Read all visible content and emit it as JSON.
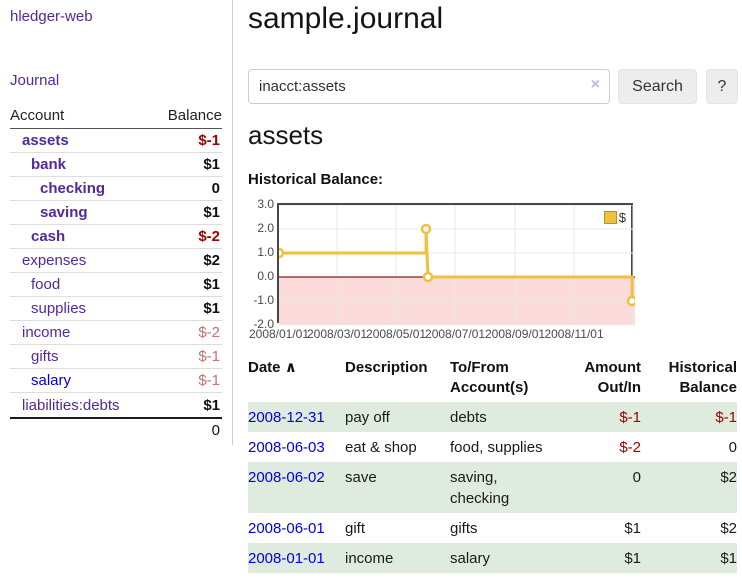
{
  "app": {
    "brand": "hledger-web"
  },
  "colors": {
    "link_purple": "#54289a",
    "link_blue": "#0000dd",
    "negative": "#a00000",
    "negative_muted": "#c47070",
    "row_green": "#deebde",
    "series_yellow": "#edc240"
  },
  "sidebar": {
    "nav": {
      "journal_label": "Journal"
    },
    "accounts_table": {
      "headers": {
        "account": "Account",
        "balance": "Balance"
      },
      "rows": [
        {
          "name": "assets",
          "balance": "$-1",
          "indent": 0,
          "bold": true,
          "name_color": "purple",
          "balance_color": "negative",
          "balance_bold": true
        },
        {
          "name": "bank",
          "balance": "$1",
          "indent": 1,
          "bold": true,
          "name_color": "purple",
          "balance_color": "normal",
          "balance_bold": true
        },
        {
          "name": "checking",
          "balance": "0",
          "indent": 2,
          "bold": true,
          "name_color": "purple",
          "balance_color": "normal",
          "balance_bold": true
        },
        {
          "name": "saving",
          "balance": "$1",
          "indent": 2,
          "bold": true,
          "name_color": "purple",
          "balance_color": "normal",
          "balance_bold": true
        },
        {
          "name": "cash",
          "balance": "$-2",
          "indent": 1,
          "bold": true,
          "name_color": "purple",
          "balance_color": "negative",
          "balance_bold": true
        },
        {
          "name": "expenses",
          "balance": "$2",
          "indent": 0,
          "bold": false,
          "name_color": "purple",
          "balance_color": "normal",
          "balance_bold": true
        },
        {
          "name": "food",
          "balance": "$1",
          "indent": 1,
          "bold": false,
          "name_color": "purple",
          "balance_color": "normal",
          "balance_bold": true
        },
        {
          "name": "supplies",
          "balance": "$1",
          "indent": 1,
          "bold": false,
          "name_color": "purple",
          "balance_color": "normal",
          "balance_bold": true
        },
        {
          "name": "income",
          "balance": "$-2",
          "indent": 0,
          "bold": false,
          "name_color": "purple",
          "balance_color": "negative_muted",
          "balance_bold": false
        },
        {
          "name": "gifts",
          "balance": "$-1",
          "indent": 1,
          "bold": false,
          "name_color": "purple",
          "balance_color": "negative_muted",
          "balance_bold": false
        },
        {
          "name": "salary",
          "balance": "$-1",
          "indent": 1,
          "bold": false,
          "name_color": "blue",
          "balance_color": "negative_muted",
          "balance_bold": false
        },
        {
          "name": "liabilities:debts",
          "balance": "$1",
          "indent": 0,
          "bold": false,
          "name_color": "purple",
          "balance_color": "normal",
          "balance_bold": true
        }
      ],
      "total": "0"
    }
  },
  "main": {
    "title": "sample.journal",
    "search": {
      "value": "inacct:assets",
      "clear_icon": "×",
      "button_label": "Search",
      "help_label": "?"
    },
    "account_heading": "assets",
    "chart_heading": "Historical Balance:",
    "register_table": {
      "headers": {
        "date": "Date",
        "sort_icon": "∧",
        "description": "Description",
        "tofrom": "To/From\nAccount(s)",
        "amount": "Amount\nOut/In",
        "balance": "Historical\nBalance"
      },
      "rows": [
        {
          "date": "2008-12-31",
          "description": "pay off",
          "tofrom": "debts",
          "amount": "$-1",
          "balance": "$-1",
          "amount_negative": true,
          "balance_negative": true,
          "shaded": true
        },
        {
          "date": "2008-06-03",
          "description": "eat & shop",
          "tofrom": "food, supplies",
          "amount": "$-2",
          "balance": "0",
          "amount_negative": true,
          "balance_negative": false,
          "shaded": false
        },
        {
          "date": "2008-06-02",
          "description": "save",
          "tofrom": "saving,\nchecking",
          "amount": "0",
          "balance": "$2",
          "amount_negative": false,
          "balance_negative": false,
          "shaded": true
        },
        {
          "date": "2008-06-01",
          "description": "gift",
          "tofrom": "gifts",
          "amount": "$1",
          "balance": "$2",
          "amount_negative": false,
          "balance_negative": false,
          "shaded": false
        },
        {
          "date": "2008-01-01",
          "description": "income",
          "tofrom": "salary",
          "amount": "$1",
          "balance": "$1",
          "amount_negative": false,
          "balance_negative": false,
          "shaded": true
        }
      ]
    }
  },
  "chart_data": {
    "type": "line",
    "title": "Historical Balance:",
    "series": [
      {
        "name": "$",
        "color": "#edc240",
        "points": [
          {
            "date": "2008/01/01",
            "day": 0,
            "value": 1
          },
          {
            "date": "2008/06/01",
            "day": 152,
            "value": 1
          },
          {
            "date": "2008/06/01",
            "day": 152,
            "value": 2
          },
          {
            "date": "2008/06/03",
            "day": 154,
            "value": 0
          },
          {
            "date": "2008/12/31",
            "day": 365,
            "value": 0
          },
          {
            "date": "2008/12/31",
            "day": 365,
            "value": -1
          }
        ],
        "markers": [
          {
            "day": 0,
            "value": 1
          },
          {
            "day": 152,
            "value": 2
          },
          {
            "day": 154,
            "value": 0
          },
          {
            "day": 365,
            "value": -1
          }
        ]
      }
    ],
    "x_gridline_days": [
      60,
      121,
      182,
      244,
      305,
      366
    ],
    "x_labels": [
      {
        "day": 0,
        "label": "2008/01/01"
      },
      {
        "day": 60,
        "label": "2008/03/01"
      },
      {
        "day": 121,
        "label": "2008/05/01"
      },
      {
        "day": 182,
        "label": "2008/07/01"
      },
      {
        "day": 244,
        "label": "2008/09/01"
      },
      {
        "day": 305,
        "label": "2008/11/01"
      }
    ],
    "xlim_days": [
      0,
      368
    ],
    "y_ticks": [
      {
        "value": 3,
        "label": "3.0"
      },
      {
        "value": 2,
        "label": "2.0"
      },
      {
        "value": 1,
        "label": "1.0"
      },
      {
        "value": 0,
        "label": "0.0"
      },
      {
        "value": -1,
        "label": "-1.0"
      },
      {
        "value": -2,
        "label": "-2.0"
      }
    ],
    "ylim": [
      -2,
      3
    ],
    "legend": {
      "label": "$",
      "position": "top-right"
    },
    "grid": true,
    "colors": {
      "negative_region": "#fbdada",
      "zero_line": "#8b1a1a",
      "gridline": "#e8e8e8",
      "border": "#474747"
    }
  }
}
